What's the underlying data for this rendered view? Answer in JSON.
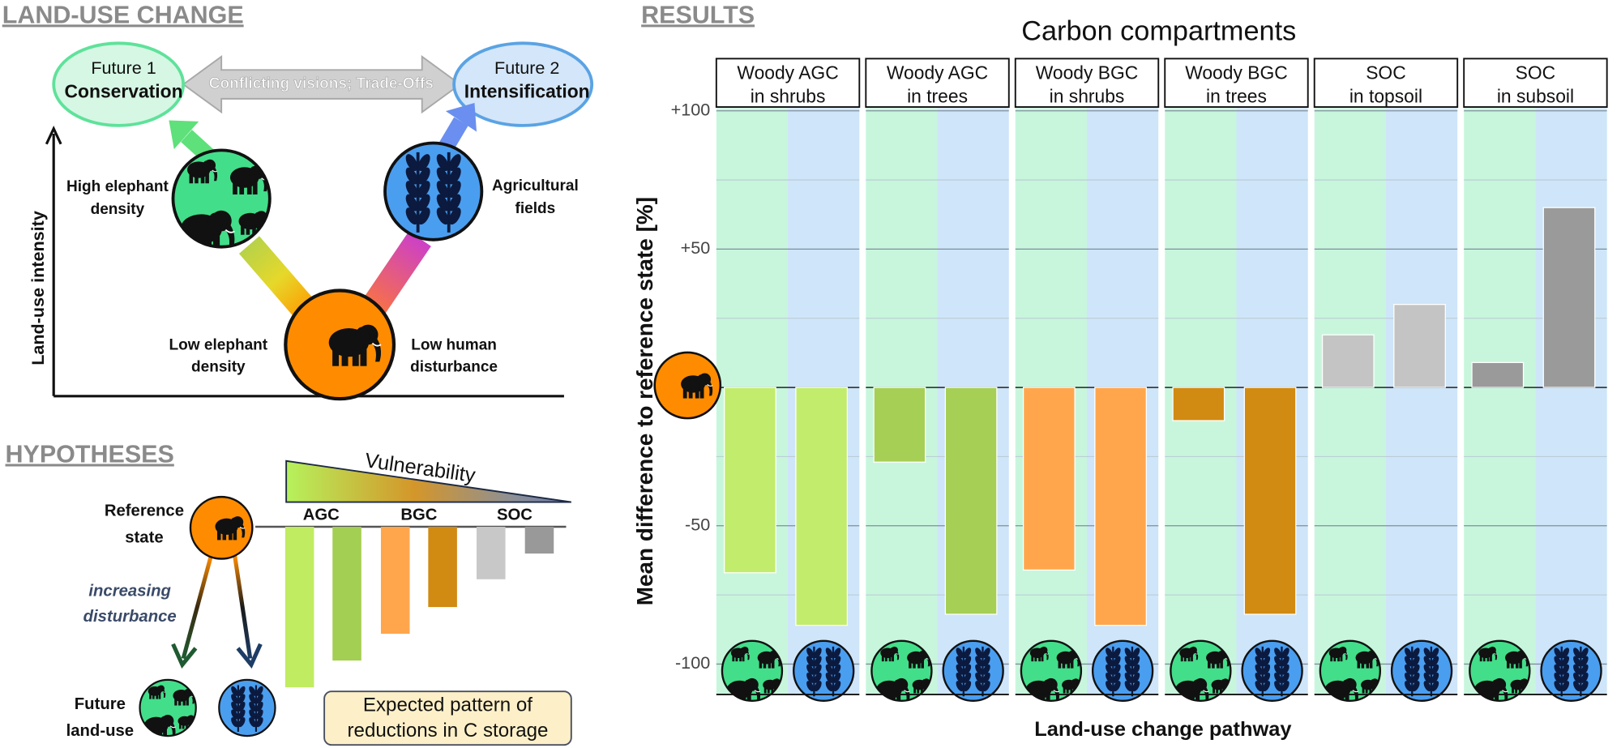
{
  "land_use_change": {
    "heading": "LAND-USE CHANGE",
    "future_1": {
      "label": "Future 1",
      "name": "Conservation"
    },
    "future_2": {
      "label": "Future 2",
      "name": "Intensification"
    },
    "trade_off": "Conflicting visions; Trade-Offs",
    "y_axis": "Land-use intensity",
    "high_elephant": [
      "High elephant",
      "density"
    ],
    "agricultural": [
      "Agricultural",
      "fields"
    ],
    "low_elephant": [
      "Low elephant",
      "density"
    ],
    "low_human": [
      "Low human",
      "disturbance"
    ]
  },
  "hypotheses": {
    "heading": "HYPOTHESES",
    "vulnerability": "Vulnerability",
    "compartments": [
      "AGC",
      "BGC",
      "SOC"
    ],
    "reference": [
      "Reference",
      "state"
    ],
    "disturbance": [
      "increasing",
      "disturbance"
    ],
    "future": [
      "Future",
      "land-use"
    ],
    "expected": [
      "Expected pattern of",
      "reductions in C storage"
    ]
  },
  "chart_data": {
    "type": "bar",
    "title": "RESULTS",
    "subtitle": "Carbon compartments",
    "y_label": "Mean difference to reference state [%]",
    "x_label": "Land-use change pathway",
    "ylim": [
      -111,
      101
    ],
    "yticks": [
      {
        "value": 100,
        "label": "+100"
      },
      {
        "value": 50,
        "label": "+50"
      },
      -50,
      -100
    ],
    "minor_yticks": [
      75,
      25,
      -25,
      -75
    ],
    "grid": true,
    "pathway_colors": [
      "#c8f6dd",
      "#cfe5f9"
    ],
    "facets": [
      {
        "label": [
          "Woody AGC",
          "in shrubs"
        ],
        "color": "#c2ec6b",
        "values": [
          -67,
          -86
        ]
      },
      {
        "label": [
          "Woody AGC",
          "in trees"
        ],
        "color": "#a6cf55",
        "values": [
          -27,
          -82
        ]
      },
      {
        "label": [
          "Woody BGC",
          "in shrubs"
        ],
        "color": "#ffa64d",
        "values": [
          -66,
          -86
        ]
      },
      {
        "label": [
          "Woody BGC",
          "in trees"
        ],
        "color": "#d18a12",
        "values": [
          -12,
          -82
        ]
      },
      {
        "label": [
          "SOC",
          "in topsoil"
        ],
        "color": "#c4c4c4",
        "values": [
          19,
          30
        ]
      },
      {
        "label": [
          "SOC",
          "in subsoil"
        ],
        "color": "#9a9a9a",
        "values": [
          9,
          65
        ]
      }
    ]
  }
}
